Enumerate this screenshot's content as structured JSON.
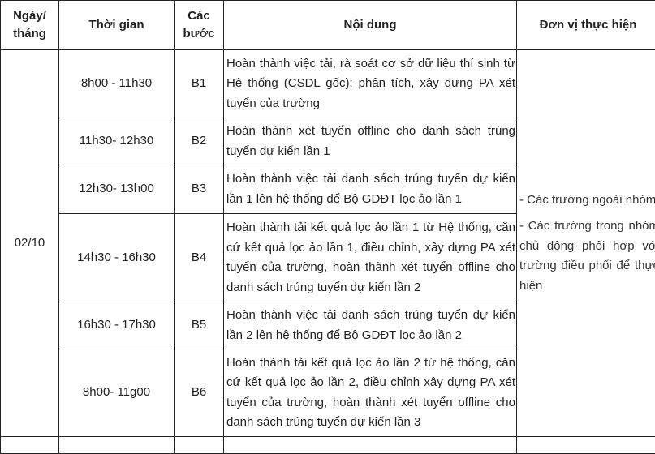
{
  "headers": {
    "date": "Ngày/ tháng",
    "time": "Thời gian",
    "step": "Các bước",
    "content": "Nội dung",
    "unit": "Đơn vị thực hiện"
  },
  "date": "02/10",
  "rows": [
    {
      "time": "8h00 - 11h30",
      "step": "B1",
      "content": "Hoàn thành việc tải, rà soát cơ sở dữ liệu thí sinh từ Hệ thống (CSDL gốc); phân tích, xây dựng PA xét tuyển của trường"
    },
    {
      "time": "11h30- 12h30",
      "step": "B2",
      "content": "Hoàn thành xét tuyển offline cho danh sách trúng tuyển dự kiến lần 1"
    },
    {
      "time": "12h30- 13h00",
      "step": "B3",
      "content": "Hoàn thành việc tải danh sách trúng tuyển dự kiến lần 1 lên hệ thống để Bộ GDĐT lọc ảo lần 1"
    },
    {
      "time": "14h30 - 16h30",
      "step": "B4",
      "content": "Hoàn thành tải kết quả lọc ảo lần 1 từ Hệ thống, căn cứ kết quả lọc ảo lần 1, điều chỉnh, xây dựng PA xét tuyển của trường, hoàn thành xét tuyển offline cho danh sách trúng tuyển dự kiến lần 2"
    },
    {
      "time": "16h30 - 17h30",
      "step": "B5",
      "content": "Hoàn thành việc tải danh sách trúng tuyển dự kiến lần 2 lên hệ thống để Bộ GDĐT lọc ảo lần 2"
    },
    {
      "time": "8h00- 11g00",
      "step": "B6",
      "content": "Hoàn thành tải kết quả lọc ảo lần 2 từ hệ thống, căn cứ kết quả lọc ảo lần 2, điều chỉnh xây dựng PA xét tuyển của trường, hoàn thành xét tuyển offline cho danh sách trúng tuyển dự kiến lần 3"
    }
  ],
  "unit": {
    "line1": "-   Các trường ngoài nhóm",
    "line2": "-   Các trường trong nhóm chủ động phối hợp với trường điều phối để thực hiện"
  }
}
